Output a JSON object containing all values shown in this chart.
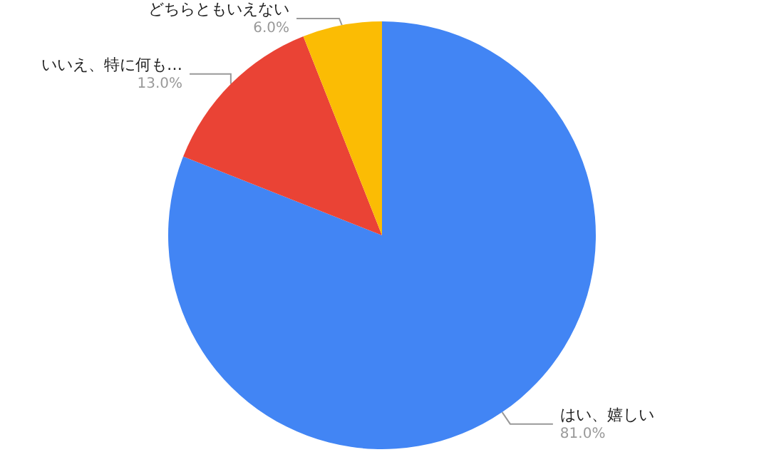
{
  "chart_data": {
    "type": "pie",
    "categories": [
      "はい、嬉しい",
      "いいえ、特に何も…",
      "どちらともいえない"
    ],
    "values": [
      81.0,
      13.0,
      6.0
    ],
    "colors": [
      "#4285f4",
      "#ea4335",
      "#fbbc04"
    ],
    "value_labels": [
      "81.0%",
      "13.0%",
      "6.0%"
    ],
    "legend": false
  }
}
